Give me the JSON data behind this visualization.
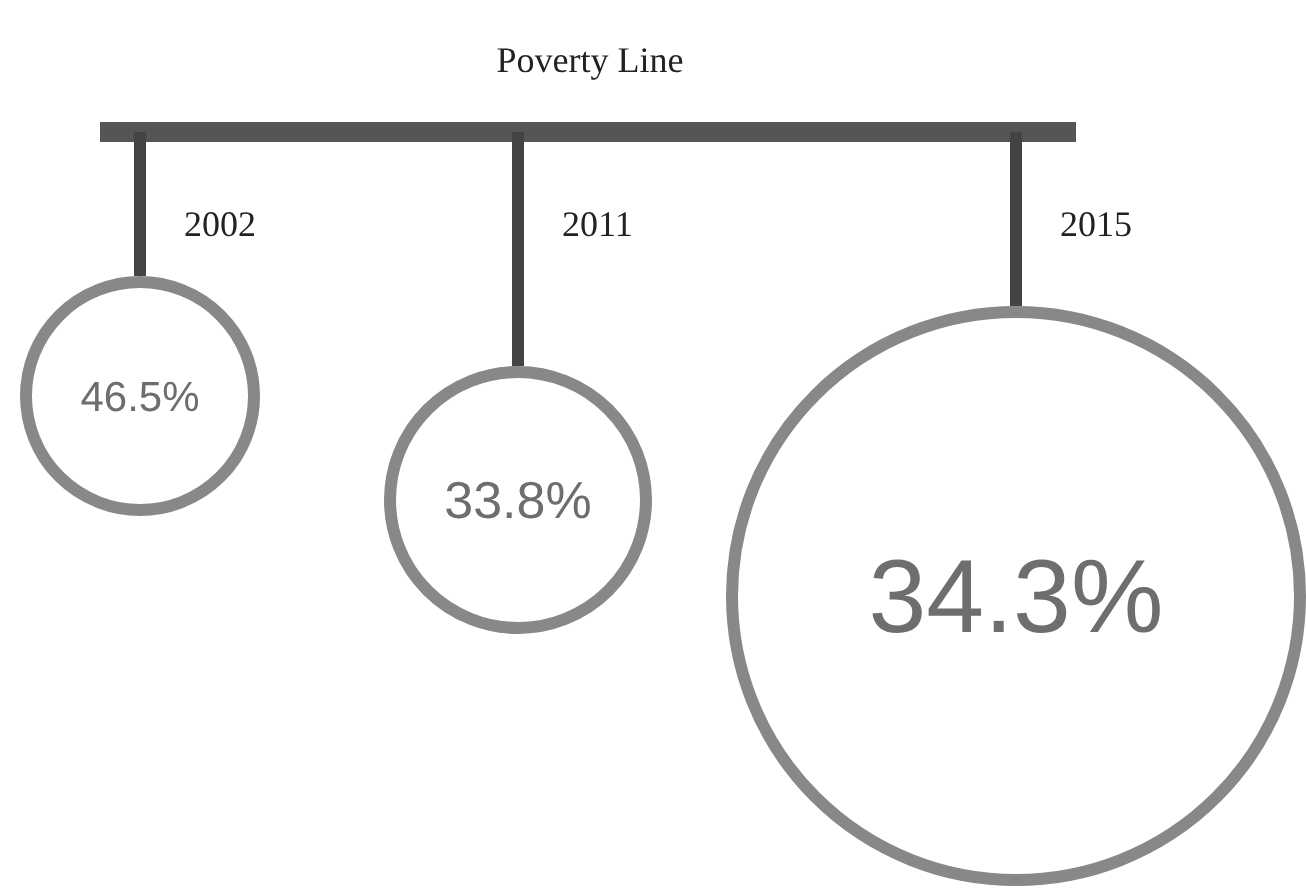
{
  "chart_data": {
    "type": "other",
    "title": "Poverty Line",
    "categories": [
      "2002",
      "2011",
      "2015"
    ],
    "values": [
      46.5,
      33.8,
      34.3
    ],
    "value_labels": [
      "46.5%",
      "33.8%",
      "34.3%"
    ],
    "color": "#888888"
  }
}
